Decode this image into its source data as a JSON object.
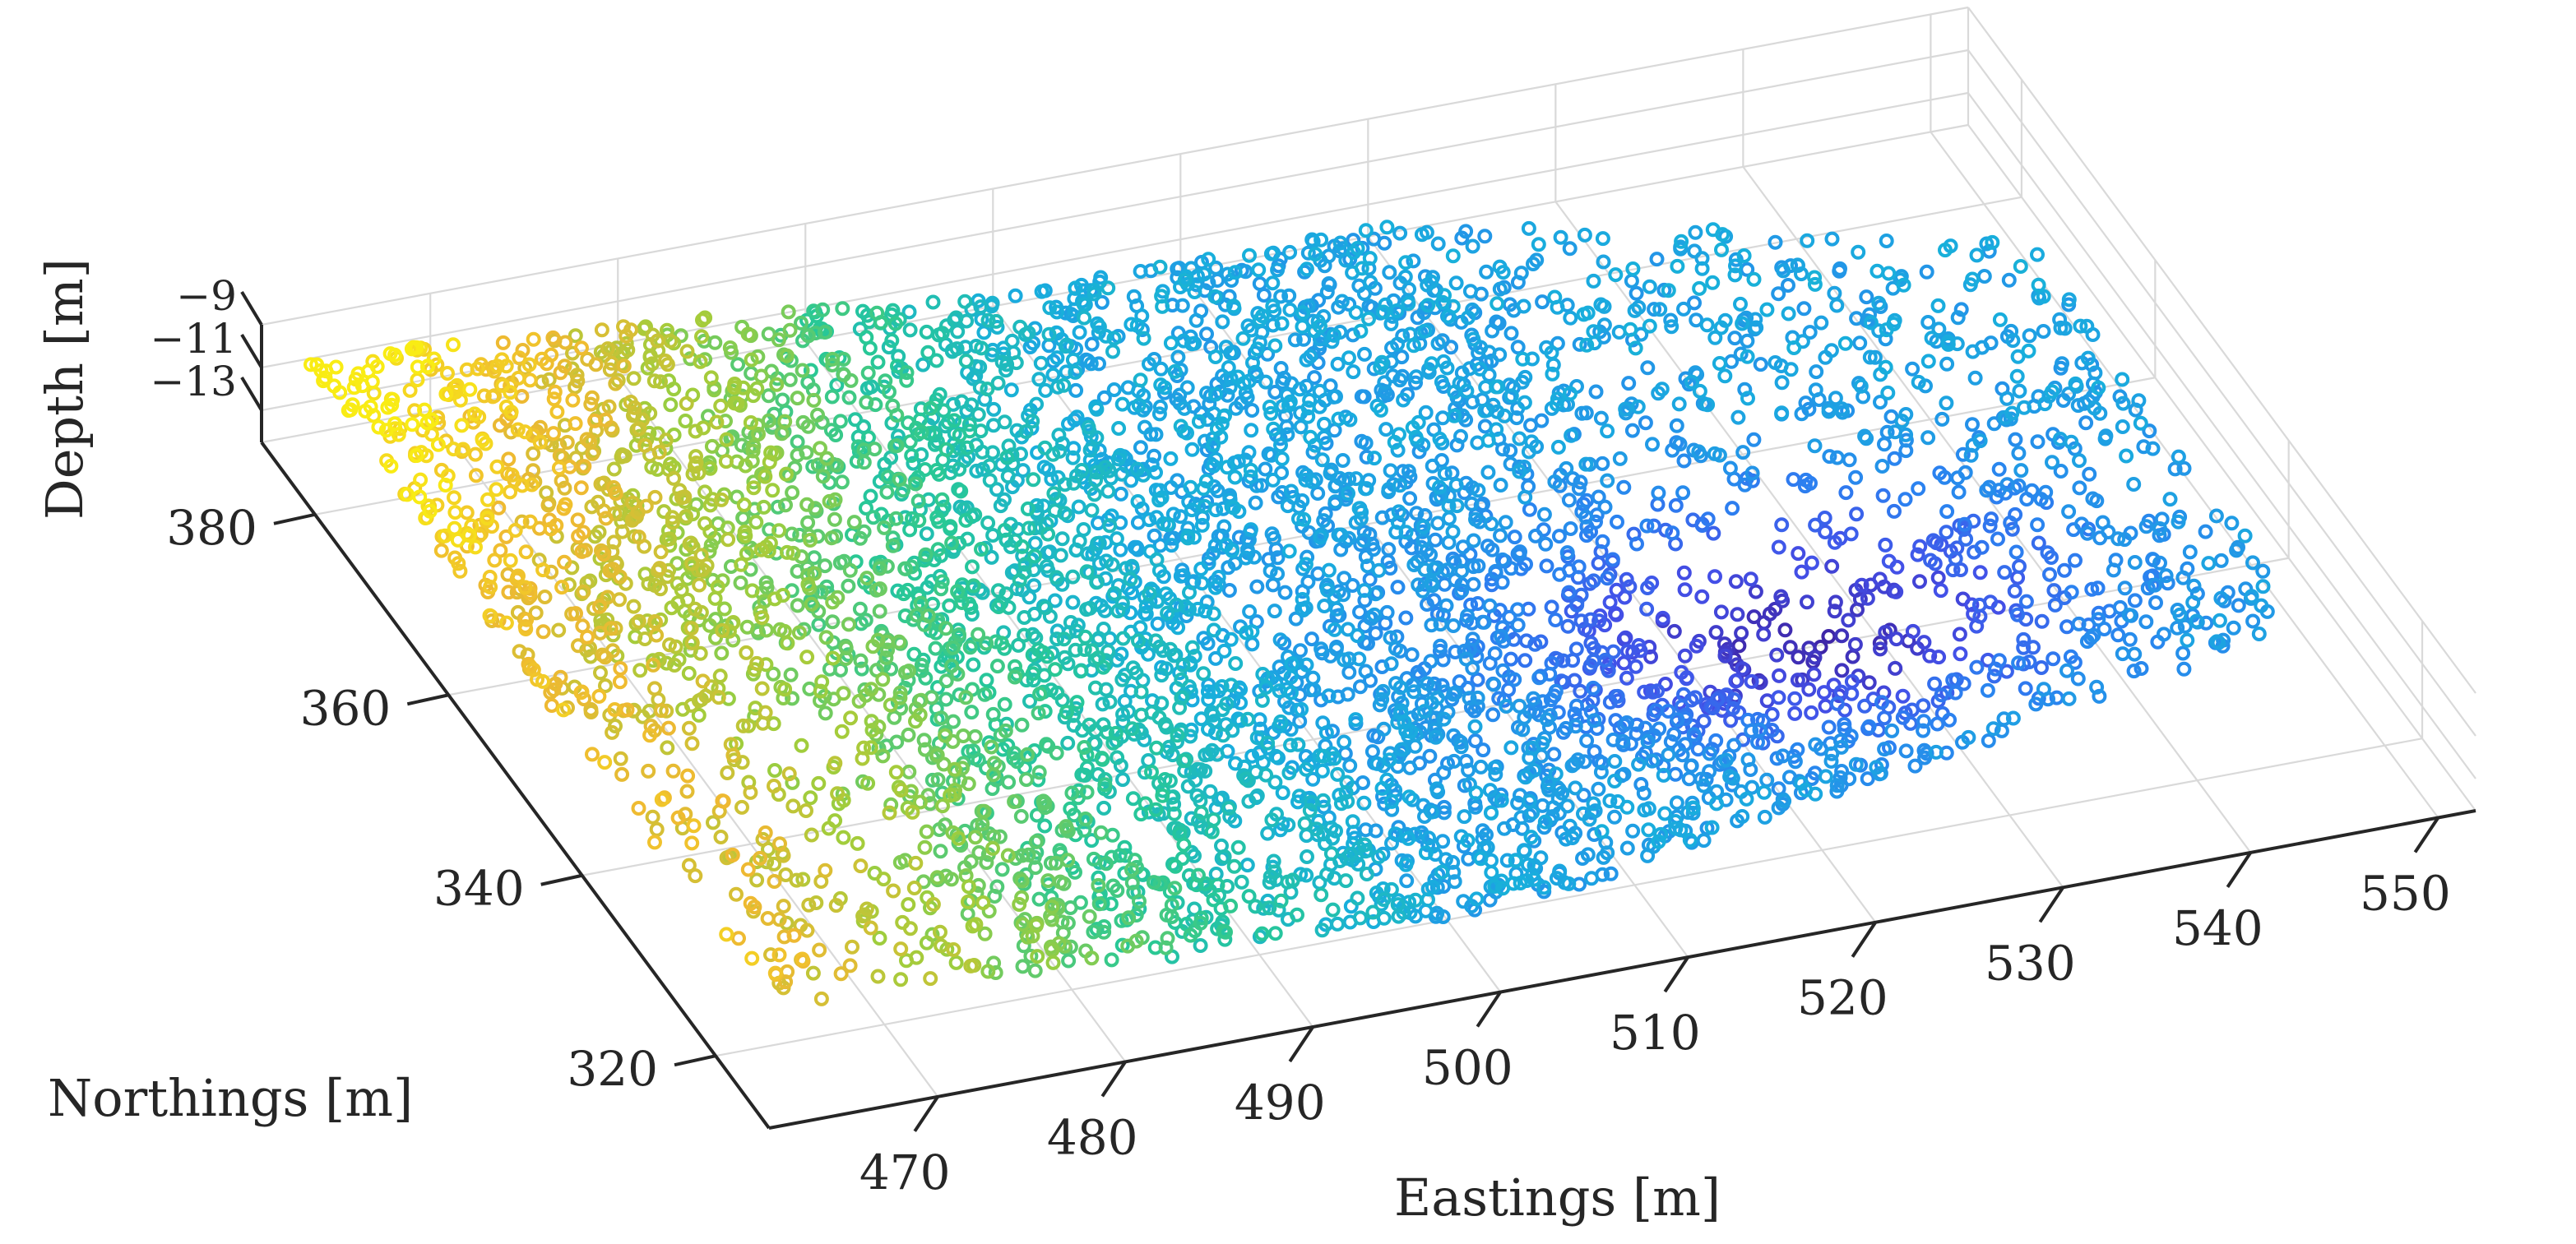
{
  "chart_data": {
    "type": "scatter",
    "view": "3d",
    "marker": "open circle",
    "xlabel": "Eastings [m]",
    "ylabel": "Northings [m]",
    "zlabel": "Depth [m]",
    "xlim": [
      461,
      552
    ],
    "ylim": [
      312,
      388
    ],
    "zlim": [
      -14.5,
      -9
    ],
    "x_ticks": [
      470,
      480,
      490,
      500,
      510,
      520,
      530,
      540,
      550
    ],
    "y_ticks": [
      320,
      340,
      360,
      380
    ],
    "z_ticks": [
      -9,
      -11,
      -13
    ],
    "x_tick_labels": [
      "470",
      "480",
      "490",
      "500",
      "510",
      "520",
      "530",
      "540",
      "550"
    ],
    "y_tick_labels": [
      "320",
      "340",
      "360",
      "380"
    ],
    "z_tick_labels": [
      "-9",
      "-11",
      "-13"
    ],
    "grid": true,
    "colormap": "parula",
    "color_by": "depth",
    "colors": {
      "shallow": "#f9fb0e",
      "mid_high": "#e6b62f",
      "mid": "#a0c83c",
      "mid_low": "#1fb9c4",
      "deep": "#2a6ff0",
      "deepest": "#4736e8"
    },
    "point_cloud_extent": {
      "x_range": [
        462,
        549
      ],
      "y_range": [
        314,
        384
      ],
      "depth_range": [
        -14.3,
        -9.2
      ]
    },
    "depth_trend": "shallow (about -9.5 m) in the west near Eastings 465-490 and north; deepest (about -14 m) near Eastings 515-540, Northings 330-350"
  }
}
